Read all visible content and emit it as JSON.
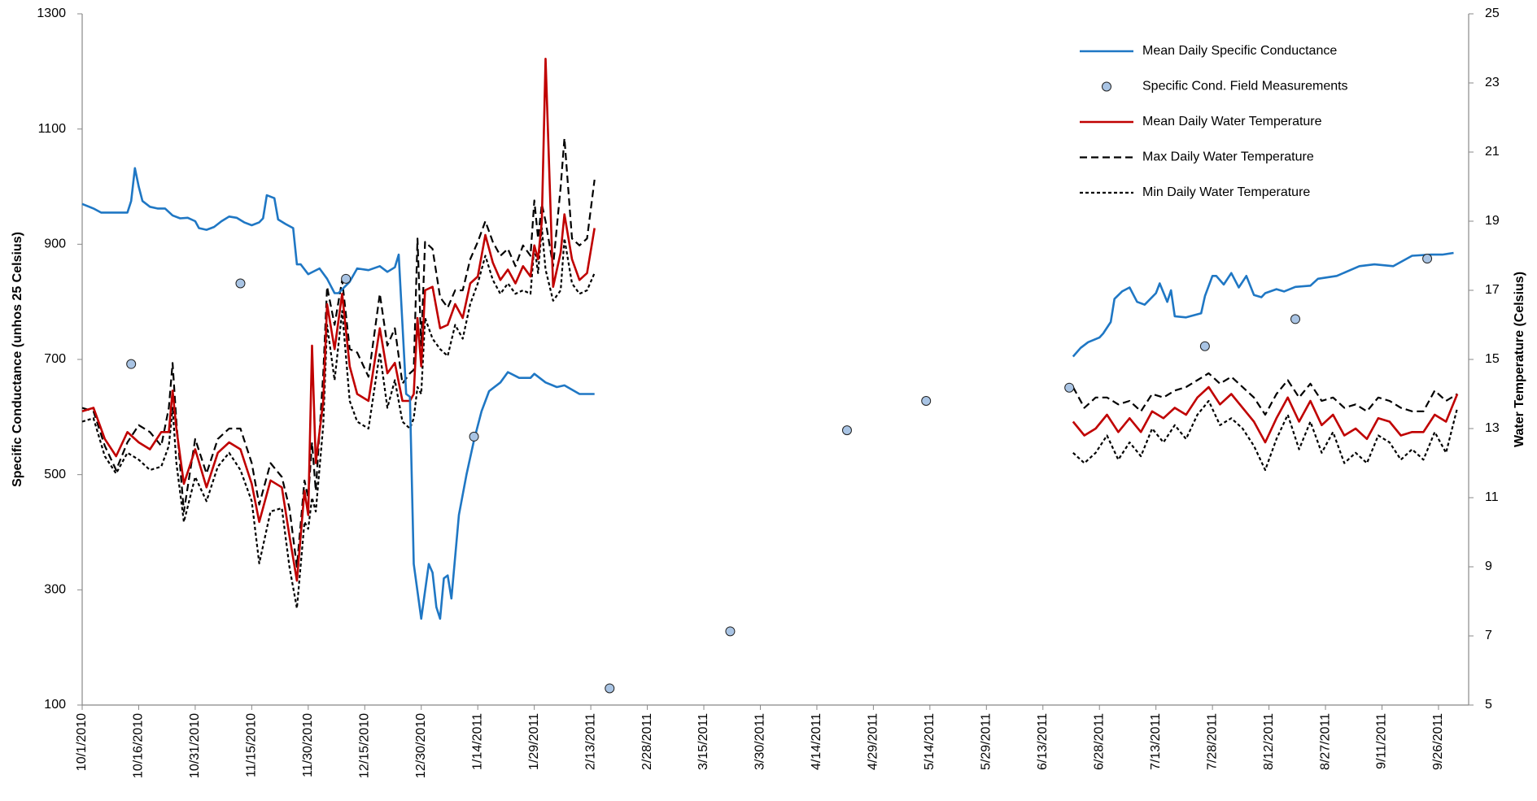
{
  "chart_data": {
    "type": "line",
    "y_label": "Specific Conductance (unhos 25 Celsius)",
    "y2_label": "Water Temperature (Celsius)",
    "xlim": [
      "10/1/2010",
      "10/4/2011"
    ],
    "xticks": [
      "10/1/2010",
      "10/16/2010",
      "10/31/2010",
      "11/15/2010",
      "11/30/2010",
      "12/15/2010",
      "12/30/2010",
      "1/14/2011",
      "1/29/2011",
      "2/13/2011",
      "2/28/2011",
      "3/15/2011",
      "3/30/2011",
      "4/14/2011",
      "4/29/2011",
      "5/14/2011",
      "5/29/2011",
      "6/13/2011",
      "6/28/2011",
      "7/13/2011",
      "7/28/2011",
      "8/12/2011",
      "8/27/2011",
      "9/11/2011",
      "9/26/2011"
    ],
    "ylim": [
      100,
      1300
    ],
    "yticks": [
      100,
      300,
      500,
      700,
      900,
      1100,
      1300
    ],
    "y2lim": [
      5,
      25
    ],
    "y2ticks": [
      5,
      7,
      9,
      11,
      13,
      15,
      17,
      19,
      21,
      23,
      25
    ],
    "grid": false,
    "x": [
      "10/1/2010",
      "10/4/2010",
      "10/7/2010",
      "10/10/2010",
      "10/13/2010",
      "10/16/2010",
      "10/19/2010",
      "10/22/2010",
      "10/24/2010",
      "10/25/2010",
      "10/26/2010",
      "10/28/2010",
      "10/31/2010",
      "11/3/2010",
      "11/6/2010",
      "11/9/2010",
      "11/12/2010",
      "11/15/2010",
      "11/17/2010",
      "11/20/2010",
      "11/23/2010",
      "11/25/2010",
      "11/27/2010",
      "11/29/2010",
      "11/30/2010",
      "12/1/2010",
      "12/2/2010",
      "12/4/2010",
      "12/5/2010",
      "12/7/2010",
      "12/9/2010",
      "12/11/2010",
      "12/13/2010",
      "12/16/2010",
      "12/19/2010",
      "12/21/2010",
      "12/23/2010",
      "12/25/2010",
      "12/27/2010",
      "12/28/2010",
      "12/29/2010",
      "12/30/2010",
      "12/31/2010",
      "1/2/2011",
      "1/4/2011",
      "1/6/2011",
      "1/8/2011",
      "1/10/2011",
      "1/12/2011",
      "1/14/2011",
      "1/16/2011",
      "1/18/2011",
      "1/20/2011",
      "1/22/2011",
      "1/24/2011",
      "1/26/2011",
      "1/28/2011",
      "1/29/2011",
      "1/30/2011",
      "1/31/2011",
      "2/1/2011",
      "2/3/2011",
      "2/5/2011",
      "2/6/2011",
      "2/8/2011",
      "2/10/2011",
      "2/12/2011",
      "2/14/2011",
      "4/19/2011",
      "6/21/2011",
      "6/24/2011",
      "6/27/2011",
      "6/30/2011",
      "7/3/2011",
      "7/6/2011",
      "7/9/2011",
      "7/12/2011",
      "7/15/2011",
      "7/18/2011",
      "7/21/2011",
      "7/24/2011",
      "7/27/2011",
      "7/30/2011",
      "8/2/2011",
      "8/5/2011",
      "8/8/2011",
      "8/11/2011",
      "8/14/2011",
      "8/17/2011",
      "8/20/2011",
      "8/23/2011",
      "8/26/2011",
      "8/29/2011",
      "9/1/2011",
      "9/4/2011",
      "9/7/2011",
      "9/10/2011",
      "9/13/2011",
      "9/16/2011",
      "9/19/2011",
      "9/22/2011",
      "9/25/2011",
      "9/28/2011",
      "10/1/2011"
    ],
    "series": [
      {
        "name": "Mean Daily Specific Conductance",
        "color": "#1f77c4",
        "style": "solid",
        "x": [
          "10/1/2010",
          "10/4/2010",
          "10/6/2010",
          "10/13/2010",
          "10/14/2010",
          "10/15/2010",
          "10/16/2010",
          "10/17/2010",
          "10/19/2010",
          "10/21/2010",
          "10/23/2010",
          "10/25/2010",
          "10/27/2010",
          "10/29/2010",
          "10/31/2010",
          "11/1/2010",
          "11/3/2010",
          "11/5/2010",
          "11/7/2010",
          "11/9/2010",
          "11/11/2010",
          "11/13/2010",
          "11/15/2010",
          "11/17/2010",
          "11/18/2010",
          "11/19/2010",
          "11/21/2010",
          "11/22/2010",
          "11/24/2010",
          "11/26/2010",
          "11/27/2010",
          "11/28/2010",
          "11/30/2010",
          "12/3/2010",
          "12/5/2010",
          "12/7/2010",
          "12/8/2010",
          "12/11/2010",
          "12/13/2010",
          "12/16/2010",
          "12/19/2010",
          "12/21/2010",
          "12/23/2010",
          "12/24/2010",
          "12/26/2010",
          "12/27/2010",
          "12/28/2010",
          "12/30/2010",
          "1/1/2011",
          "1/2/2011",
          "1/3/2011",
          "1/4/2011",
          "1/5/2011",
          "1/6/2011",
          "1/7/2011",
          "1/9/2011",
          "1/11/2011",
          "1/13/2011",
          "1/15/2011",
          "1/17/2011",
          "1/20/2011",
          "1/22/2011",
          "1/25/2011",
          "1/28/2011",
          "1/29/2011",
          "2/1/2011",
          "2/4/2011",
          "2/6/2011",
          "2/10/2011",
          "2/14/2011",
          "4/19/2011",
          "6/21/2011",
          "6/23/2011",
          "6/25/2011",
          "6/28/2011",
          "6/29/2011",
          "7/1/2011",
          "7/2/2011",
          "7/4/2011",
          "7/6/2011",
          "7/8/2011",
          "7/10/2011",
          "7/13/2011",
          "7/14/2011",
          "7/16/2011",
          "7/17/2011",
          "7/18/2011",
          "7/21/2011",
          "7/25/2011",
          "7/26/2011",
          "7/28/2011",
          "7/29/2011",
          "7/31/2011",
          "8/2/2011",
          "8/4/2011",
          "8/6/2011",
          "8/8/2011",
          "8/10/2011",
          "8/11/2011",
          "8/14/2011",
          "8/16/2011",
          "8/19/2011",
          "8/23/2011",
          "8/25/2011",
          "8/30/2011",
          "9/5/2011",
          "9/9/2011",
          "9/14/2011",
          "9/19/2011",
          "9/24/2011",
          "9/27/2011",
          "9/30/2011"
        ],
        "values": [
          970,
          962,
          955,
          955,
          975,
          1032,
          1000,
          975,
          965,
          962,
          962,
          950,
          945,
          946,
          940,
          928,
          925,
          930,
          940,
          948,
          946,
          938,
          933,
          938,
          945,
          985,
          980,
          943,
          935,
          928,
          865,
          865,
          848,
          858,
          840,
          815,
          815,
          835,
          858,
          855,
          862,
          852,
          860,
          882,
          640,
          635,
          345,
          250,
          345,
          330,
          270,
          250,
          320,
          325,
          285,
          430,
          500,
          560,
          610,
          645,
          660,
          678,
          668,
          668,
          675,
          660,
          652,
          655,
          640,
          640,
          null,
          705,
          720,
          730,
          738,
          745,
          765,
          805,
          818,
          825,
          800,
          795,
          815,
          832,
          800,
          820,
          775,
          773,
          780,
          810,
          845,
          845,
          830,
          850,
          825,
          845,
          812,
          808,
          815,
          822,
          818,
          826,
          828,
          840,
          845,
          862,
          865,
          862,
          880,
          882,
          882,
          885
        ]
      },
      {
        "name": "Specific Cond. Field Measurements",
        "color": "#a9c4e4",
        "style": "marker",
        "x": [
          "10/14/2010",
          "11/12/2010",
          "12/10/2010",
          "1/13/2011",
          "2/18/2011",
          "3/22/2011",
          "4/22/2011",
          "5/13/2011",
          "6/20/2011",
          "7/26/2011",
          "8/19/2011",
          "9/23/2011"
        ],
        "values": [
          692,
          832,
          840,
          566,
          129,
          228,
          577,
          628,
          651,
          723,
          770,
          875
        ]
      },
      {
        "name": "Mean Daily Water Temperature",
        "color": "#c00000",
        "style": "solid",
        "axis": "y2",
        "values": [
          13.5,
          13.6,
          12.7,
          12.2,
          12.9,
          12.6,
          12.4,
          12.9,
          12.9,
          14.1,
          13.0,
          11.4,
          12.4,
          11.3,
          12.3,
          12.6,
          12.4,
          11.4,
          10.3,
          11.5,
          11.3,
          9.9,
          8.6,
          11.2,
          10.5,
          15.4,
          12.0,
          13.8,
          16.6,
          15.3,
          16.9,
          14.8,
          14.0,
          13.8,
          15.9,
          14.6,
          14.9,
          13.8,
          13.8,
          14.0,
          16.2,
          14.8,
          17.0,
          17.1,
          15.9,
          16.0,
          16.6,
          16.2,
          17.2,
          17.4,
          18.6,
          17.8,
          17.3,
          17.6,
          17.2,
          17.7,
          17.4,
          18.3,
          17.9,
          19.0,
          23.7,
          17.1,
          18.1,
          19.2,
          17.9,
          17.3,
          17.5,
          18.8,
          null,
          13.2,
          12.8,
          13.0,
          13.4,
          12.9,
          13.3,
          12.9,
          13.5,
          13.3,
          13.6,
          13.4,
          13.9,
          14.2,
          13.7,
          14.0,
          13.6,
          13.2,
          12.6,
          13.3,
          13.9,
          13.2,
          13.8,
          13.1,
          13.4,
          12.8,
          13.0,
          12.7,
          13.3,
          13.2,
          12.8,
          12.9,
          12.9,
          13.4,
          13.2,
          14.0
        ]
      },
      {
        "name": "Max Daily Water Temperature",
        "color": "#000000",
        "style": "dashed",
        "axis": "y2",
        "values": [
          13.6,
          13.5,
          12.5,
          11.8,
          12.6,
          13.1,
          12.9,
          12.5,
          13.6,
          14.9,
          13.2,
          10.6,
          12.7,
          11.7,
          12.7,
          13.0,
          13.0,
          12.0,
          10.8,
          12.0,
          11.6,
          10.7,
          9.0,
          11.5,
          11.0,
          12.6,
          11.2,
          14.6,
          17.1,
          16.0,
          17.3,
          15.3,
          15.2,
          14.5,
          16.9,
          15.4,
          15.9,
          14.3,
          14.6,
          14.7,
          18.5,
          15.4,
          18.4,
          18.2,
          16.8,
          16.5,
          17.0,
          17.0,
          17.9,
          18.4,
          19.0,
          18.4,
          18.0,
          18.2,
          17.7,
          18.3,
          18.0,
          19.6,
          18.5,
          19.5,
          19.0,
          17.7,
          20.0,
          21.4,
          18.5,
          18.3,
          18.5,
          20.2,
          null,
          14.2,
          13.6,
          13.9,
          13.9,
          13.7,
          13.8,
          13.5,
          14.0,
          13.9,
          14.1,
          14.2,
          14.4,
          14.6,
          14.3,
          14.5,
          14.2,
          13.9,
          13.4,
          14.0,
          14.4,
          13.9,
          14.3,
          13.8,
          13.9,
          13.6,
          13.7,
          13.5,
          13.9,
          13.8,
          13.6,
          13.5,
          13.5,
          14.1,
          13.8,
          14.0
        ]
      },
      {
        "name": "Min Daily Water Temperature",
        "color": "#000000",
        "style": "dotted",
        "axis": "y2",
        "values": [
          13.2,
          13.3,
          12.2,
          11.7,
          12.3,
          12.1,
          11.8,
          11.9,
          12.5,
          13.6,
          12.0,
          10.3,
          11.6,
          10.9,
          11.9,
          12.3,
          11.8,
          10.9,
          9.1,
          10.6,
          10.7,
          9.0,
          7.8,
          10.3,
          10.1,
          11.0,
          10.6,
          13.1,
          16.0,
          14.4,
          16.4,
          13.8,
          13.2,
          13.0,
          15.2,
          13.6,
          14.4,
          13.2,
          13.0,
          13.3,
          14.2,
          14.0,
          16.2,
          15.6,
          15.3,
          15.1,
          16.0,
          15.6,
          16.6,
          17.2,
          18.0,
          17.3,
          16.9,
          17.2,
          16.9,
          17.0,
          16.9,
          18.3,
          17.5,
          18.8,
          17.6,
          16.7,
          17.0,
          18.5,
          17.2,
          16.9,
          17.0,
          17.5,
          null,
          12.3,
          12.0,
          12.3,
          12.8,
          12.1,
          12.6,
          12.2,
          13.0,
          12.6,
          13.1,
          12.7,
          13.4,
          13.8,
          13.1,
          13.3,
          13.0,
          12.5,
          11.8,
          12.7,
          13.4,
          12.4,
          13.2,
          12.3,
          12.9,
          12.0,
          12.3,
          12.0,
          12.8,
          12.6,
          12.1,
          12.4,
          12.1,
          12.9,
          12.3,
          13.6
        ]
      }
    ]
  }
}
